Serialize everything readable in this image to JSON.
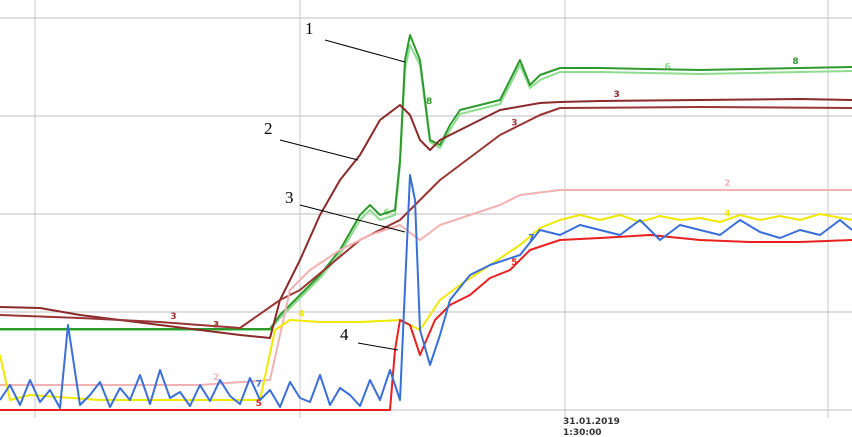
{
  "chart_data": {
    "type": "line",
    "annotations": [
      "1",
      "2",
      "3",
      "4"
    ],
    "date_label": [
      "31.01.2019",
      "1:30:00"
    ],
    "xlim": [
      0,
      85.2
    ],
    "ylim": [
      0,
      410
    ],
    "xgrid": [
      3.5,
      30,
      56.5,
      82.8
    ],
    "ygrid": [
      0,
      98,
      196,
      294,
      392
    ],
    "grid": true,
    "series": [
      {
        "name": "6",
        "color": "#8fdc8f",
        "x": [
          0,
          27,
          28,
          30,
          32,
          34,
          36,
          37,
          38,
          39.5,
          40,
          40.5,
          41,
          42,
          43,
          44,
          45,
          46,
          48,
          50,
          51,
          52,
          53,
          54,
          56,
          60,
          70,
          80,
          85.2
        ],
        "values": [
          80,
          80,
          92,
          112,
          132,
          156,
          190,
          200,
          190,
          195,
          245,
          340,
          365,
          345,
          268,
          262,
          280,
          296,
          301,
          306,
          325,
          345,
          322,
          330,
          338,
          338,
          336,
          338,
          339
        ]
      },
      {
        "name": "8",
        "color": "#2e9a2e",
        "x": [
          0,
          27,
          28,
          30,
          32,
          34,
          36,
          37,
          38,
          39.5,
          40,
          40.5,
          41,
          42,
          43,
          44,
          45,
          46,
          48,
          50,
          51,
          52,
          53,
          54,
          56,
          60,
          70,
          80,
          85.2
        ],
        "values": [
          81,
          81,
          95,
          115,
          135,
          160,
          195,
          205,
          195,
          200,
          250,
          350,
          375,
          350,
          270,
          265,
          285,
          300,
          305,
          310,
          330,
          350,
          325,
          335,
          342,
          342,
          340,
          342,
          343
        ]
      },
      {
        "name": "3",
        "color": "#8b2a2a",
        "x": [
          0,
          4,
          8,
          12,
          16,
          20,
          24,
          27,
          28,
          30,
          32,
          34,
          36,
          38,
          40,
          41,
          42,
          43,
          44,
          46,
          48,
          50,
          54,
          56,
          60,
          70,
          80,
          85.2
        ],
        "values": [
          103,
          102,
          95,
          90,
          85,
          80,
          75,
          72,
          110,
          150,
          195,
          230,
          255,
          290,
          305,
          295,
          270,
          260,
          270,
          280,
          290,
          300,
          307,
          308,
          309,
          310,
          311,
          310
        ]
      },
      {
        "name": "3",
        "color": "#9a3535",
        "x": [
          0,
          8,
          16,
          24,
          28,
          30,
          33,
          36,
          40,
          42,
          44,
          46,
          48,
          50,
          54,
          56,
          70,
          85.2
        ],
        "values": [
          95,
          92,
          88,
          82,
          110,
          120,
          145,
          170,
          190,
          210,
          230,
          245,
          260,
          275,
          295,
          302,
          303,
          302
        ]
      },
      {
        "name": "2",
        "color": "#f2b2b2",
        "x": [
          0,
          10,
          20,
          27,
          29,
          31,
          34,
          37,
          40,
          42,
          44,
          47,
          50,
          52,
          56,
          70,
          85.2
        ],
        "values": [
          25,
          25,
          25,
          30,
          120,
          140,
          160,
          175,
          185,
          170,
          185,
          195,
          205,
          215,
          220,
          220,
          220
        ]
      },
      {
        "name": "4",
        "color": "#f0e800",
        "x": [
          0,
          1,
          3,
          10,
          20,
          26,
          27.5,
          29,
          32,
          36,
          40,
          42,
          44,
          46,
          49,
          52,
          54,
          56,
          58,
          60,
          62,
          64,
          66,
          68,
          70,
          72,
          74,
          76,
          78,
          80,
          82,
          85.2
        ],
        "values": [
          55,
          10,
          15,
          10,
          10,
          10,
          80,
          90,
          88,
          88,
          90,
          80,
          110,
          125,
          145,
          165,
          182,
          190,
          195,
          190,
          195,
          188,
          194,
          190,
          192,
          188,
          195,
          190,
          194,
          190,
          196,
          190
        ]
      },
      {
        "name": "5",
        "color": "#e82020",
        "x": [
          0,
          39,
          39.5,
          40,
          41,
          42,
          43.5,
          45,
          47,
          49,
          51,
          53,
          56,
          60,
          65,
          70,
          75,
          80,
          85.2
        ],
        "values": [
          0,
          0,
          60,
          90,
          85,
          55,
          90,
          105,
          115,
          132,
          140,
          160,
          170,
          172,
          175,
          170,
          168,
          168,
          170
        ]
      },
      {
        "name": "7",
        "color": "#3a6ed8",
        "x": [
          0,
          1,
          2,
          3,
          4,
          5,
          6,
          6.8,
          8,
          9,
          10,
          11,
          12,
          13,
          14,
          15,
          16,
          17,
          18,
          19,
          20,
          21,
          22,
          23,
          24,
          25,
          26,
          27,
          28,
          29,
          30,
          31,
          32,
          33,
          34,
          35,
          36,
          37,
          38,
          39,
          40,
          41,
          41.5,
          42,
          43,
          44,
          45,
          47,
          49,
          52,
          54,
          56,
          58,
          60,
          62,
          64,
          66,
          68,
          70,
          72,
          74,
          76,
          78,
          80,
          82,
          84,
          85.2
        ],
        "values": [
          10,
          25,
          5,
          30,
          8,
          20,
          2,
          85,
          5,
          15,
          28,
          3,
          22,
          10,
          35,
          6,
          40,
          12,
          18,
          4,
          25,
          9,
          30,
          14,
          6,
          32,
          10,
          20,
          3,
          28,
          12,
          8,
          35,
          5,
          22,
          15,
          4,
          30,
          10,
          40,
          10,
          235,
          210,
          80,
          45,
          75,
          110,
          135,
          145,
          155,
          180,
          175,
          185,
          180,
          175,
          190,
          170,
          185,
          180,
          175,
          190,
          178,
          172,
          180,
          175,
          190,
          180
        ]
      }
    ]
  }
}
